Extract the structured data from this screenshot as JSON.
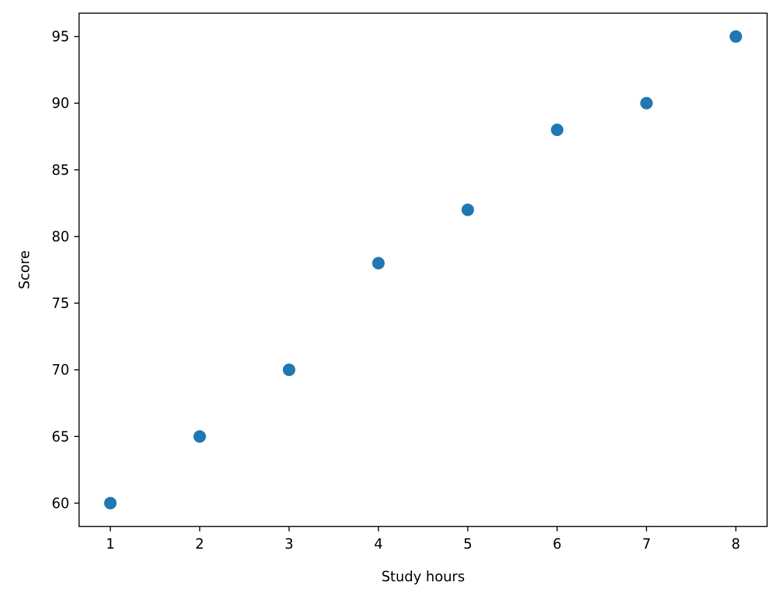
{
  "chart_data": {
    "type": "scatter",
    "title": "",
    "xlabel": "Study hours",
    "ylabel": "Score",
    "xlim": [
      0.65,
      8.35
    ],
    "ylim": [
      58.25,
      96.75
    ],
    "xticks": [
      1,
      2,
      3,
      4,
      5,
      6,
      7,
      8
    ],
    "yticks": [
      60,
      65,
      70,
      75,
      80,
      85,
      90,
      95
    ],
    "grid": false,
    "legend": "none",
    "series": [
      {
        "color": "#1f77b4",
        "x": [
          1,
          2,
          3,
          4,
          5,
          6,
          7,
          8
        ],
        "y": [
          60,
          65,
          70,
          78,
          82,
          88,
          90,
          95
        ]
      }
    ]
  }
}
